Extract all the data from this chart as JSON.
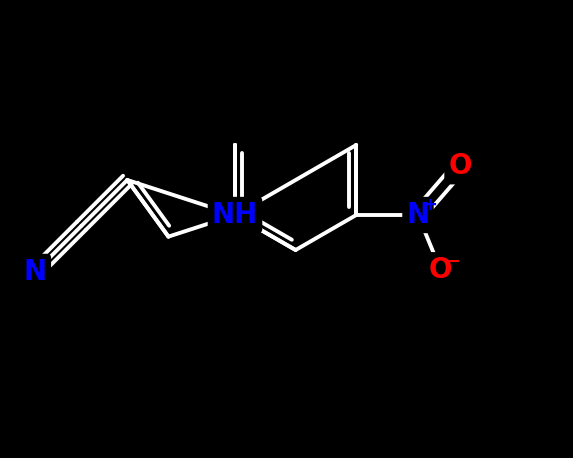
{
  "background_color": "#000000",
  "bond_color": "#ffffff",
  "bond_width": 2.8,
  "figsize": [
    5.73,
    4.58
  ],
  "dpi": 100,
  "xlim": [
    0,
    573
  ],
  "ylim": [
    0,
    458
  ],
  "nh_color": "#0000ff",
  "n_nitrile_color": "#0000ff",
  "n_nitro_color": "#0000ff",
  "o_color": "#ff0000",
  "label_fontsize": 20,
  "superscript_fontsize": 13
}
